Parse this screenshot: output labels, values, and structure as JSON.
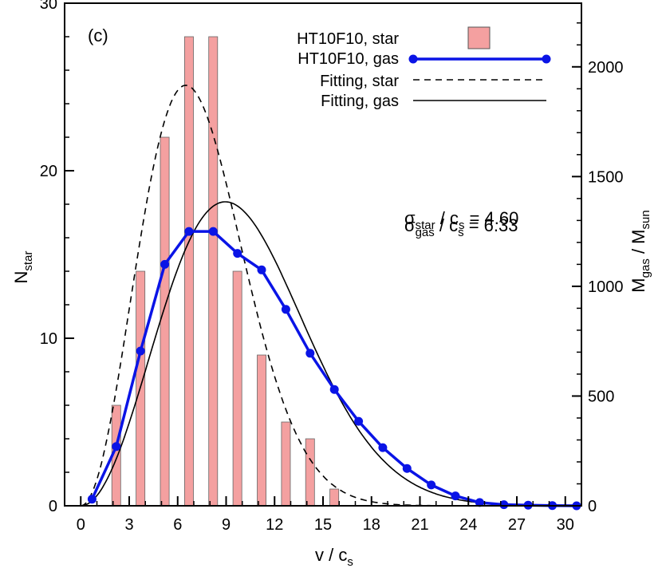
{
  "chart_data": {
    "type": "bar",
    "panel_label": "(c)",
    "xlabel": {
      "main": "v / c",
      "sub": "s"
    },
    "ylabel_left": {
      "main": "N",
      "sub": "star"
    },
    "ylabel_right": {
      "main": "M",
      "sub1": "gas",
      "mid": " / M",
      "sub2": "sun"
    },
    "xlim": [
      -1,
      31
    ],
    "ylim_left": [
      0,
      30
    ],
    "ylim_right": [
      0,
      2290
    ],
    "xticks": [
      0,
      3,
      6,
      9,
      12,
      15,
      18,
      21,
      24,
      27,
      30
    ],
    "yticks_left": [
      0,
      10,
      20,
      30
    ],
    "yticks_right": [
      0,
      500,
      1000,
      1500,
      2000
    ],
    "grid": false,
    "legend_placement": "top-right",
    "colors": {
      "bar_fill": "#f4a0a0",
      "gas_line": "#0a14e6",
      "black": "#000000"
    },
    "series": [
      {
        "name": "HT10F10, star",
        "kind": "bar",
        "axis": "left",
        "x": [
          2.2,
          3.7,
          5.2,
          6.7,
          8.2,
          9.7,
          11.2,
          12.7,
          14.2,
          15.7
        ],
        "values": [
          6,
          14,
          22,
          28,
          28,
          14,
          9,
          5,
          4,
          1
        ]
      },
      {
        "name": "HT10F10, gas",
        "kind": "line-markers",
        "axis": "right",
        "x": [
          0.7,
          2.2,
          3.7,
          5.2,
          6.7,
          8.2,
          9.7,
          11.2,
          12.7,
          14.2,
          15.7,
          17.2,
          18.7,
          20.2,
          21.7,
          23.2,
          24.7,
          26.2,
          27.7,
          29.2,
          30.7
        ],
        "values": [
          30,
          270,
          705,
          1100,
          1250,
          1250,
          1150,
          1075,
          895,
          695,
          530,
          385,
          265,
          170,
          95,
          45,
          15,
          5,
          3,
          1,
          0
        ]
      },
      {
        "name": "Fitting, star",
        "kind": "dashed-line",
        "axis": "left",
        "model": {
          "form": "maxwellian",
          "sigma": 4.6,
          "peak": 25.1
        }
      },
      {
        "name": "Fitting, gas",
        "kind": "solid-line",
        "axis": "right",
        "model": {
          "form": "maxwellian",
          "sigma": 6.33,
          "peak": 1385
        }
      }
    ],
    "annotations": [
      {
        "symbol": "σ",
        "sub": "star",
        "rest": " / c",
        "sub2": "s",
        "value": " = 4.60"
      },
      {
        "symbol": "σ",
        "sub": "gas",
        "rest": " / c",
        "sub2": "s",
        "value": " = 6.33"
      }
    ]
  }
}
